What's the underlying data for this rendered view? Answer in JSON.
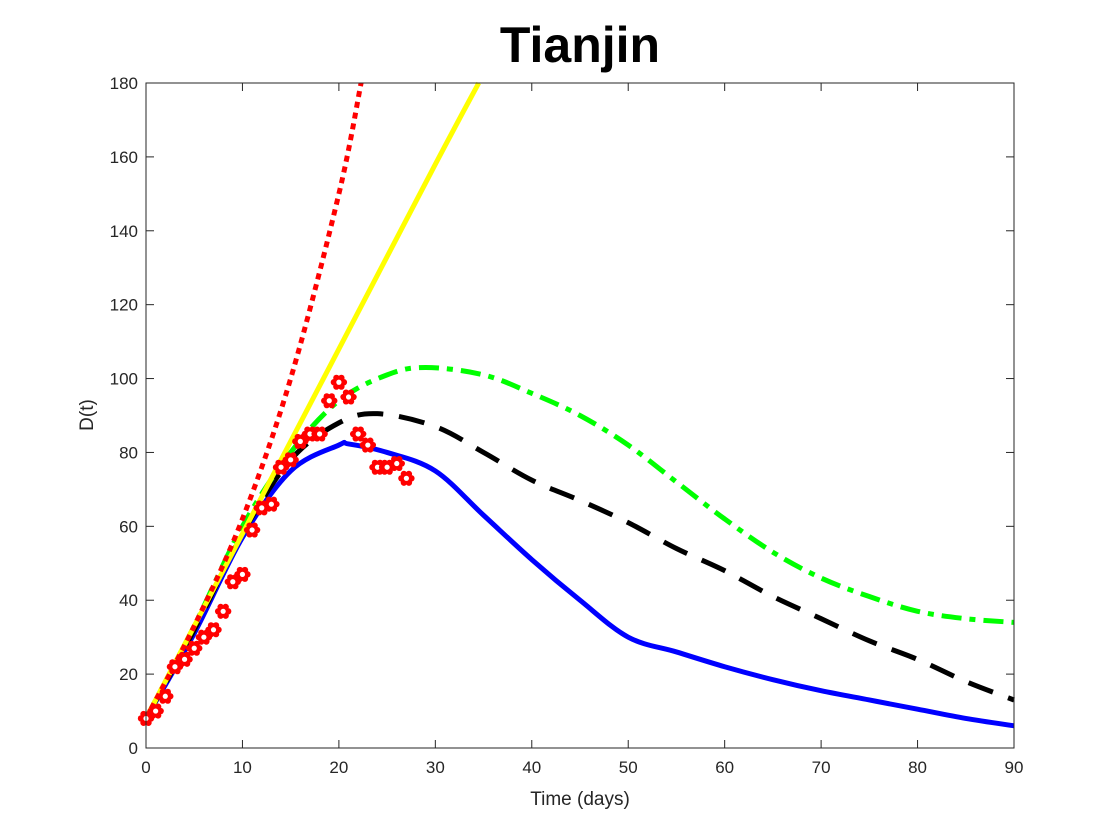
{
  "chart_data": {
    "type": "line",
    "title": "Tianjin",
    "xlabel": "Time (days)",
    "ylabel": "D(t)",
    "xlim": [
      0,
      90
    ],
    "ylim": [
      0,
      180
    ],
    "xticks": [
      0,
      10,
      20,
      30,
      40,
      50,
      60,
      70,
      80,
      90
    ],
    "yticks": [
      0,
      20,
      40,
      60,
      80,
      100,
      120,
      140,
      160,
      180
    ],
    "grid": false,
    "series": [
      {
        "name": "red-dotted",
        "color": "#ff0000",
        "style": "dotted",
        "x": [
          0,
          5,
          10,
          15,
          20,
          22.3
        ],
        "y": [
          8,
          33,
          62,
          100,
          150,
          180
        ]
      },
      {
        "name": "yellow-solid",
        "color": "#ffff00",
        "style": "solid",
        "x": [
          0,
          10,
          20,
          30,
          34.5
        ],
        "y": [
          8,
          58,
          108,
          158,
          180
        ]
      },
      {
        "name": "green-dashdot",
        "color": "#00ff00",
        "style": "dashdot",
        "x": [
          0,
          5,
          10,
          15,
          20,
          25,
          29,
          35,
          40,
          45,
          50,
          55,
          60,
          65,
          70,
          75,
          80,
          85,
          90
        ],
        "y": [
          8,
          33,
          60,
          80,
          94,
          101,
          103,
          101,
          96,
          90,
          82,
          72,
          62,
          53,
          46,
          41,
          37,
          35,
          34
        ]
      },
      {
        "name": "black-dashed",
        "color": "#000000",
        "style": "dashed",
        "x": [
          0,
          5,
          10,
          15,
          20,
          24,
          30,
          35,
          40,
          45,
          50,
          55,
          60,
          65,
          70,
          75,
          80,
          85,
          90
        ],
        "y": [
          8,
          32,
          58,
          78,
          88,
          90.5,
          87,
          80,
          72.5,
          67,
          61,
          54,
          48,
          41,
          35,
          29,
          24,
          18,
          13
        ]
      },
      {
        "name": "blue-solid",
        "color": "#0000ff",
        "style": "solid",
        "x": [
          0,
          5,
          10,
          15,
          20,
          21,
          25,
          30,
          35,
          40,
          45,
          50,
          55,
          60,
          65,
          70,
          75,
          80,
          85,
          90
        ],
        "y": [
          8,
          31,
          57,
          75,
          82,
          82.3,
          80,
          75,
          63,
          51,
          40,
          30,
          26,
          22,
          18.5,
          15.5,
          13,
          10.5,
          8,
          6
        ]
      }
    ],
    "observed": {
      "name": "data",
      "color": "#ff0000",
      "marker": "flower",
      "x": [
        0,
        1,
        2,
        3,
        4,
        5,
        6,
        7,
        8,
        9,
        10,
        11,
        12,
        13,
        14,
        15,
        16,
        17,
        18,
        19,
        20,
        21,
        22,
        23,
        24,
        25,
        26,
        27
      ],
      "y": [
        8,
        10,
        14,
        22,
        24,
        27,
        30,
        32,
        37,
        45,
        47,
        59,
        65,
        66,
        76,
        78,
        83,
        85,
        85,
        94,
        99,
        95,
        85,
        82,
        76,
        76,
        77,
        73
      ]
    }
  }
}
